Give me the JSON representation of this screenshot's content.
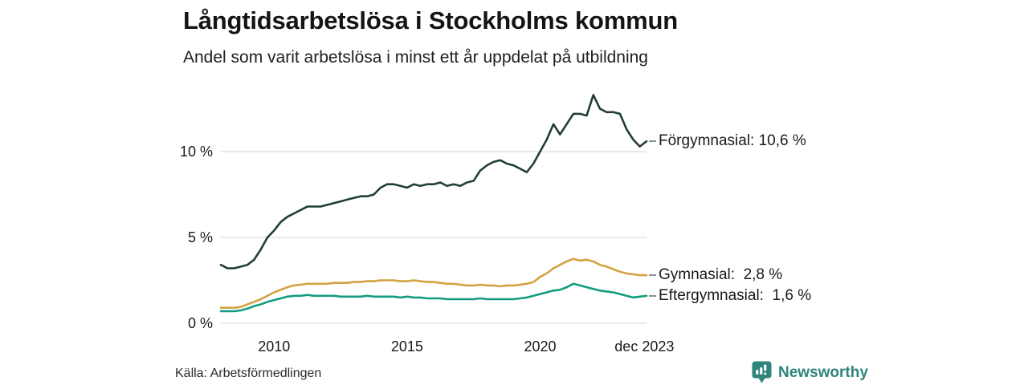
{
  "header": {
    "title": "Långtidsarbetslösa i Stockholms kommun",
    "subtitle": "Andel som varit arbetslösa i minst ett år uppdelat på utbildning"
  },
  "footer": {
    "source": "Källa: Arbetsförmedlingen",
    "brand": "Newsworthy",
    "brand_icon": "newsworthy-barchart-pin-icon",
    "brand_color": "#2f857b"
  },
  "colors": {
    "background": "#ffffff",
    "grid": "#dddddd",
    "text": "#1a1a1a",
    "label_connector": "#8f8f8f"
  },
  "chart_data": {
    "type": "line",
    "title": "Långtidsarbetslösa i Stockholms kommun",
    "subtitle": "Andel som varit arbetslösa i minst ett år uppdelat på utbildning",
    "unit": "%",
    "grid": "horizontal-only",
    "legend_position": "right-of-line-ends",
    "xlim": [
      2008.0,
      2024.0
    ],
    "ylim": [
      0,
      14.16
    ],
    "yticks": [
      {
        "value": 0,
        "label": "0 %"
      },
      {
        "value": 5,
        "label": "5 %"
      },
      {
        "value": 10,
        "label": "10 %"
      }
    ],
    "xticks": [
      {
        "value": 2010,
        "label": "2010"
      },
      {
        "value": 2015,
        "label": "2015"
      },
      {
        "value": 2020,
        "label": "2020"
      },
      {
        "value": 2023.92,
        "label": "dec 2023"
      }
    ],
    "x": [
      2008.0,
      2008.25,
      2008.5,
      2008.75,
      2009.0,
      2009.25,
      2009.5,
      2009.75,
      2010.0,
      2010.25,
      2010.5,
      2010.75,
      2011.0,
      2011.25,
      2011.5,
      2011.75,
      2012.0,
      2012.25,
      2012.5,
      2012.75,
      2013.0,
      2013.25,
      2013.5,
      2013.75,
      2014.0,
      2014.25,
      2014.5,
      2014.75,
      2015.0,
      2015.25,
      2015.5,
      2015.75,
      2016.0,
      2016.25,
      2016.5,
      2016.75,
      2017.0,
      2017.25,
      2017.5,
      2017.75,
      2018.0,
      2018.25,
      2018.5,
      2018.75,
      2019.0,
      2019.25,
      2019.5,
      2019.75,
      2020.0,
      2020.25,
      2020.5,
      2020.75,
      2021.0,
      2021.25,
      2021.5,
      2021.75,
      2022.0,
      2022.25,
      2022.5,
      2022.75,
      2023.0,
      2023.25,
      2023.5,
      2023.75,
      2024.0
    ],
    "series": [
      {
        "name": "Förgymnasial",
        "end_label": "Förgymnasial: 10,6 %",
        "last_value_text": "10,6 %",
        "color": "#213e39",
        "values": [
          3.4,
          3.2,
          3.2,
          3.3,
          3.4,
          3.7,
          4.3,
          5.0,
          5.4,
          5.9,
          6.2,
          6.4,
          6.6,
          6.8,
          6.8,
          6.8,
          6.9,
          7.0,
          7.1,
          7.2,
          7.3,
          7.4,
          7.4,
          7.5,
          7.9,
          8.1,
          8.1,
          8.0,
          7.9,
          8.1,
          8.0,
          8.1,
          8.1,
          8.2,
          8.0,
          8.1,
          8.0,
          8.2,
          8.3,
          8.9,
          9.2,
          9.4,
          9.5,
          9.3,
          9.2,
          9.0,
          8.8,
          9.3,
          10.0,
          10.7,
          11.6,
          11.0,
          11.6,
          12.2,
          12.2,
          12.1,
          13.3,
          12.5,
          12.3,
          12.3,
          12.2,
          11.3,
          10.7,
          10.3,
          10.6
        ]
      },
      {
        "name": "Gymnasial",
        "end_label": "Gymnasial:  2,8 %",
        "last_value_text": "2,8 %",
        "color": "#d5a242",
        "values": [
          0.9,
          0.9,
          0.9,
          0.95,
          1.1,
          1.25,
          1.4,
          1.6,
          1.8,
          1.95,
          2.1,
          2.2,
          2.25,
          2.3,
          2.3,
          2.3,
          2.3,
          2.35,
          2.35,
          2.35,
          2.4,
          2.4,
          2.45,
          2.45,
          2.5,
          2.5,
          2.5,
          2.45,
          2.45,
          2.5,
          2.45,
          2.4,
          2.4,
          2.35,
          2.3,
          2.3,
          2.25,
          2.2,
          2.2,
          2.25,
          2.2,
          2.2,
          2.15,
          2.2,
          2.2,
          2.25,
          2.3,
          2.4,
          2.7,
          2.9,
          3.2,
          3.4,
          3.6,
          3.75,
          3.65,
          3.7,
          3.6,
          3.4,
          3.3,
          3.15,
          3.0,
          2.9,
          2.85,
          2.8,
          2.8
        ]
      },
      {
        "name": "Eftergymnasial",
        "end_label": "Eftergymnasial:  1,6 %",
        "last_value_text": "1,6 %",
        "color": "#149c80",
        "values": [
          0.7,
          0.7,
          0.7,
          0.75,
          0.85,
          1.0,
          1.1,
          1.25,
          1.35,
          1.45,
          1.55,
          1.6,
          1.6,
          1.65,
          1.6,
          1.6,
          1.6,
          1.6,
          1.55,
          1.55,
          1.55,
          1.55,
          1.6,
          1.55,
          1.55,
          1.55,
          1.55,
          1.5,
          1.55,
          1.5,
          1.5,
          1.45,
          1.45,
          1.45,
          1.4,
          1.4,
          1.4,
          1.4,
          1.4,
          1.45,
          1.4,
          1.4,
          1.4,
          1.4,
          1.4,
          1.45,
          1.5,
          1.6,
          1.7,
          1.8,
          1.9,
          1.95,
          2.1,
          2.3,
          2.2,
          2.1,
          2.0,
          1.9,
          1.85,
          1.8,
          1.7,
          1.6,
          1.5,
          1.55,
          1.6
        ]
      }
    ]
  }
}
